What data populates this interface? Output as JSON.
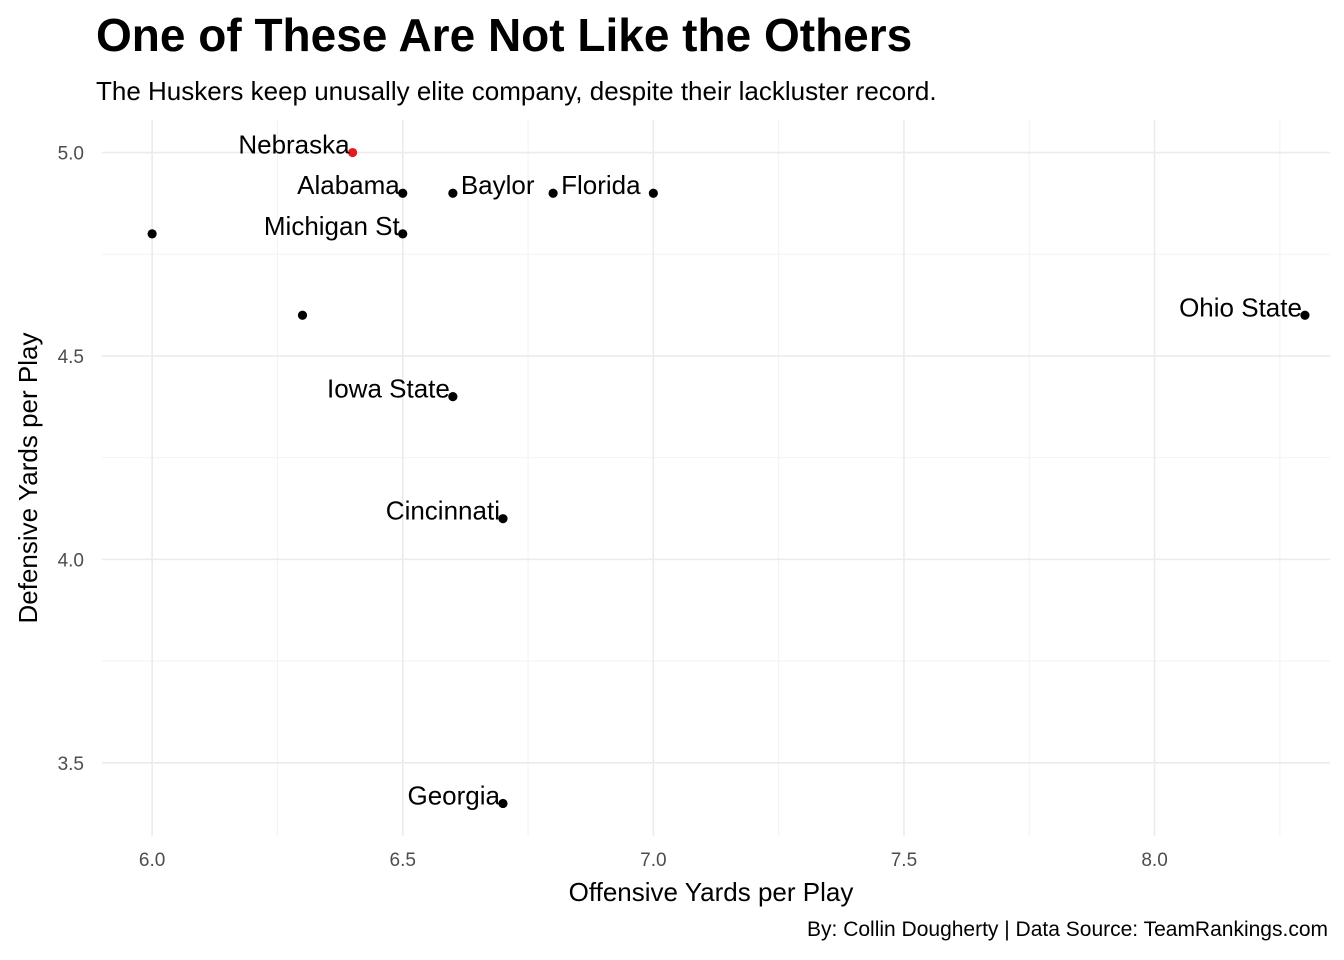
{
  "chart_data": {
    "type": "scatter",
    "title": "One of These Are Not Like the Others",
    "subtitle": "The Huskers keep unusally elite company, despite their lackluster record.",
    "caption": "By: Collin Dougherty | Data Source: TeamRankings.com",
    "xlabel": "Offensive Yards per Play",
    "ylabel": "Defensive Yards per Play",
    "xlim": [
      5.9,
      8.35
    ],
    "ylim": [
      3.32,
      5.08
    ],
    "x_ticks": [
      6.0,
      6.5,
      7.0,
      7.5,
      8.0
    ],
    "x_tick_labels": [
      "6.0",
      "6.5",
      "7.0",
      "7.5",
      "8.0"
    ],
    "y_ticks": [
      3.5,
      4.0,
      4.5,
      5.0
    ],
    "y_tick_labels": [
      "3.5",
      "4.0",
      "4.5",
      "5.0"
    ],
    "grid": true,
    "legend": "none",
    "highlight_color": "#e41a1c",
    "point_color": "#000000",
    "points": [
      {
        "x": 6.4,
        "y": 5.0,
        "label": "Nebraska",
        "highlight": true
      },
      {
        "x": 6.5,
        "y": 4.9,
        "label": "Alabama"
      },
      {
        "x": 6.6,
        "y": 4.9,
        "label": "Baylor"
      },
      {
        "x": 6.8,
        "y": 4.9,
        "label": "Florida"
      },
      {
        "x": 7.0,
        "y": 4.9,
        "label": ""
      },
      {
        "x": 6.0,
        "y": 4.8,
        "label": ""
      },
      {
        "x": 6.5,
        "y": 4.8,
        "label": "Michigan St"
      },
      {
        "x": 6.3,
        "y": 4.6,
        "label": ""
      },
      {
        "x": 8.3,
        "y": 4.6,
        "label": "Ohio State"
      },
      {
        "x": 6.6,
        "y": 4.4,
        "label": "Iowa State"
      },
      {
        "x": 6.7,
        "y": 4.1,
        "label": "Cincinnati"
      },
      {
        "x": 6.7,
        "y": 3.4,
        "label": "Georgia"
      }
    ]
  }
}
